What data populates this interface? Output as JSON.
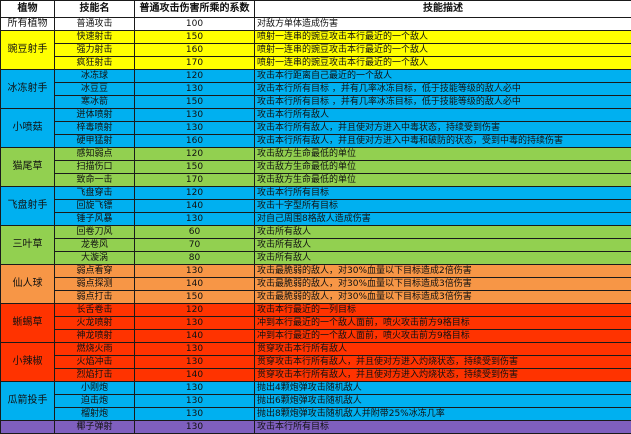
{
  "headers": {
    "plant": "植物",
    "skill": "技能名",
    "coef": "普通攻击伤害所乘的系数",
    "desc": "技能描述"
  },
  "colors": {
    "white": "#ffffff",
    "yellow": "#ffff00",
    "blue": "#00b0f0",
    "green": "#92d050",
    "orange": "#f79646",
    "red": "#ff3300",
    "purple": "#7f5fbf"
  },
  "groups": [
    {
      "plant": "所有植物",
      "color": "white",
      "rows": [
        {
          "skill": "普通攻击",
          "coef": "100",
          "desc": "对敌方单体造成伤害"
        }
      ]
    },
    {
      "plant": "豌豆射手",
      "color": "yellow",
      "rows": [
        {
          "skill": "快速射击",
          "coef": "150",
          "desc": "喷射一连串的豌豆攻击本行最近的一个敌人"
        },
        {
          "skill": "强力射击",
          "coef": "160",
          "desc": "喷射一连串的豌豆攻击本行最近的一个敌人"
        },
        {
          "skill": "疯狂射击",
          "coef": "170",
          "desc": "喷射一连串的豌豆攻击本行最近的一个敌人"
        }
      ]
    },
    {
      "plant": "冰冻射手",
      "color": "blue",
      "rows": [
        {
          "skill": "冰冻球",
          "coef": "120",
          "desc": "攻击本行距离自己最近的一个敌人"
        },
        {
          "skill": "冰豆豆",
          "coef": "130",
          "desc": "攻击本行所有目标 ，并有几率冰冻目标，低于技能等级的敌人必中"
        },
        {
          "skill": "寒冰箭",
          "coef": "150",
          "desc": "攻击本行所有目标 ，并有几率冰冻目标，低于技能等级的敌人必中"
        }
      ]
    },
    {
      "plant": "小喷菇",
      "color": "blue",
      "rows": [
        {
          "skill": "迸体喷射",
          "coef": "130",
          "desc": "攻击本行所有敌人"
        },
        {
          "skill": "梓毒喷射",
          "coef": "130",
          "desc": "攻击本行所有敌人，并且使对方进入中毒状态，持续受到伤害"
        },
        {
          "skill": "硬甲猛射",
          "coef": "160",
          "desc": "攻击本行所有敌人，并且使对方进入中毒和破防的状态，受到中毒的持续伤害"
        }
      ]
    },
    {
      "plant": "猫尾草",
      "color": "green",
      "rows": [
        {
          "skill": "感知弱点",
          "coef": "120",
          "desc": "攻击敌方生命最低的单位"
        },
        {
          "skill": "扫描伤口",
          "coef": "150",
          "desc": "攻击敌方生命最低的单位"
        },
        {
          "skill": "致命一击",
          "coef": "170",
          "desc": "攻击敌方生命最低的单位"
        }
      ]
    },
    {
      "plant": "飞盘射手",
      "color": "blue",
      "rows": [
        {
          "skill": "飞盘穿击",
          "coef": "120",
          "desc": "攻击本行所有目标"
        },
        {
          "skill": "回旋飞镖",
          "coef": "140",
          "desc": "攻击十字型所有目标"
        },
        {
          "skill": "锤子风暴",
          "coef": "130",
          "desc": "对自己周围8格敌人造成伤害"
        }
      ]
    },
    {
      "plant": "三叶草",
      "color": "green",
      "rows": [
        {
          "skill": "回卷刀风",
          "coef": "60",
          "desc": "攻击所有敌人"
        },
        {
          "skill": "龙卷风",
          "coef": "70",
          "desc": "攻击所有敌人"
        },
        {
          "skill": "大漩涡",
          "coef": "80",
          "desc": "攻击所有敌人"
        }
      ]
    },
    {
      "plant": "仙人球",
      "color": "orange",
      "rows": [
        {
          "skill": "弱点看穿",
          "coef": "130",
          "desc": "攻击最脆弱的敌人，对30%血量以下目标造成2倍伤害"
        },
        {
          "skill": "弱点探测",
          "coef": "140",
          "desc": "攻击最脆弱的敌人，对30%血量以下目标造成3倍伤害"
        },
        {
          "skill": "弱点打击",
          "coef": "150",
          "desc": "攻击最脆弱的敌人，对30%血量以下目标造成3倍伤害"
        }
      ]
    },
    {
      "plant": "蜥蜴草",
      "color": "red",
      "rows": [
        {
          "skill": "长舌卷击",
          "coef": "120",
          "desc": "攻击本行最近的一列目标"
        },
        {
          "skill": "火龙喷射",
          "coef": "130",
          "desc": "冲到本行最近的一个敌人面前，喷火攻击前方9格目标"
        },
        {
          "skill": "神龙喷射",
          "coef": "140",
          "desc": "冲到本行最近的一个敌人面前，喷火攻击前方9格目标"
        }
      ]
    },
    {
      "plant": "小辣椒",
      "color": "red",
      "rows": [
        {
          "skill": "燃烧火雨",
          "coef": "130",
          "desc": "贯穿攻击本行所有敌人"
        },
        {
          "skill": "火焰冲击",
          "coef": "130",
          "desc": "贯穿攻击本行所有敌人，并且使对方进入灼烧状态，持续受到伤害"
        },
        {
          "skill": "烈焰打击",
          "coef": "140",
          "desc": "贯穿攻击本行所有敌人，并且使对方进入灼烧状态，持续受到伤害"
        }
      ]
    },
    {
      "plant": "瓜箭投手",
      "color": "blue",
      "rows": [
        {
          "skill": "小刚炮",
          "coef": "130",
          "desc": "抛出4颗炮弹攻击随机敌人"
        },
        {
          "skill": "迫击炮",
          "coef": "130",
          "desc": "抛出6颗炮弹攻击随机敌人"
        },
        {
          "skill": "榴射炮",
          "coef": "130",
          "desc": "抛出8颗炮弹攻击随机敌人并附带25%冰冻几率"
        }
      ]
    },
    {
      "plant": "",
      "color": "purple",
      "rows": [
        {
          "skill": "椰子弹射",
          "coef": "130",
          "desc": "攻击本行所有目标"
        }
      ]
    }
  ]
}
